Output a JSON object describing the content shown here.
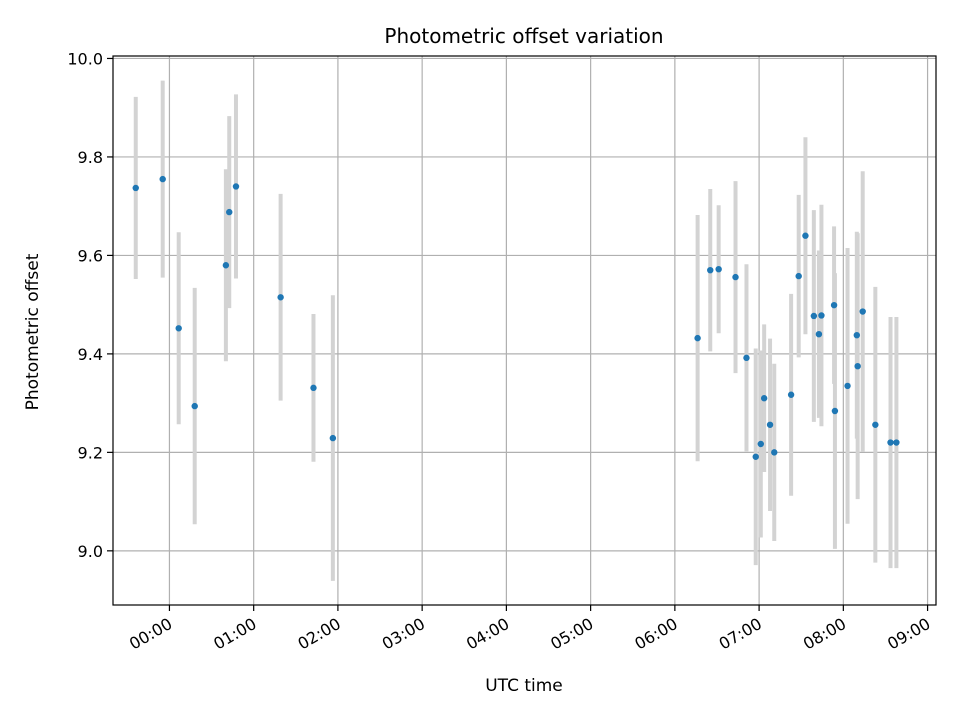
{
  "chart_data": {
    "type": "scatter",
    "title": "Photometric offset variation",
    "xlabel": "UTC time",
    "ylabel": "Photometric offset",
    "x_unit": "hours UTC",
    "xlim": [
      -0.67,
      9.1
    ],
    "ylim": [
      8.89,
      10.005
    ],
    "grid": true,
    "x_ticks": [
      {
        "value": 0,
        "label": "00:00"
      },
      {
        "value": 1,
        "label": "01:00"
      },
      {
        "value": 2,
        "label": "02:00"
      },
      {
        "value": 3,
        "label": "03:00"
      },
      {
        "value": 4,
        "label": "04:00"
      },
      {
        "value": 5,
        "label": "05:00"
      },
      {
        "value": 6,
        "label": "06:00"
      },
      {
        "value": 7,
        "label": "07:00"
      },
      {
        "value": 8,
        "label": "08:00"
      },
      {
        "value": 9,
        "label": "09:00"
      }
    ],
    "y_ticks": [
      {
        "value": 9.0,
        "label": "9.0"
      },
      {
        "value": 9.2,
        "label": "9.2"
      },
      {
        "value": 9.4,
        "label": "9.4"
      },
      {
        "value": 9.6,
        "label": "9.6"
      },
      {
        "value": 9.8,
        "label": "9.8"
      },
      {
        "value": 10.0,
        "label": "10.0"
      }
    ],
    "colors": {
      "marker": "#1f77b4",
      "errorbar": "#d3d3d3",
      "grid": "#b0b0b0"
    },
    "points": [
      {
        "x": -0.4,
        "y": 9.737,
        "err": 0.185
      },
      {
        "x": -0.08,
        "y": 9.755,
        "err": 0.2
      },
      {
        "x": 0.11,
        "y": 9.452,
        "err": 0.195
      },
      {
        "x": 0.3,
        "y": 9.294,
        "err": 0.24
      },
      {
        "x": 0.67,
        "y": 9.58,
        "err": 0.195
      },
      {
        "x": 0.71,
        "y": 9.688,
        "err": 0.195
      },
      {
        "x": 0.79,
        "y": 9.74,
        "err": 0.187
      },
      {
        "x": 1.32,
        "y": 9.515,
        "err": 0.21
      },
      {
        "x": 1.71,
        "y": 9.331,
        "err": 0.15
      },
      {
        "x": 1.94,
        "y": 9.229,
        "err": 0.29
      },
      {
        "x": 6.27,
        "y": 9.432,
        "err": 0.25
      },
      {
        "x": 6.42,
        "y": 9.57,
        "err": 0.165
      },
      {
        "x": 6.52,
        "y": 9.572,
        "err": 0.13
      },
      {
        "x": 6.72,
        "y": 9.556,
        "err": 0.195
      },
      {
        "x": 6.85,
        "y": 9.392,
        "err": 0.19
      },
      {
        "x": 6.96,
        "y": 9.191,
        "err": 0.22
      },
      {
        "x": 7.02,
        "y": 9.217,
        "err": 0.19
      },
      {
        "x": 7.06,
        "y": 9.31,
        "err": 0.15
      },
      {
        "x": 7.13,
        "y": 9.256,
        "err": 0.175
      },
      {
        "x": 7.18,
        "y": 9.2,
        "err": 0.18
      },
      {
        "x": 7.38,
        "y": 9.317,
        "err": 0.205
      },
      {
        "x": 7.47,
        "y": 9.558,
        "err": 0.165
      },
      {
        "x": 7.55,
        "y": 9.64,
        "err": 0.2
      },
      {
        "x": 7.65,
        "y": 9.477,
        "err": 0.215
      },
      {
        "x": 7.71,
        "y": 9.44,
        "err": 0.17
      },
      {
        "x": 7.74,
        "y": 9.478,
        "err": 0.225
      },
      {
        "x": 7.89,
        "y": 9.499,
        "err": 0.16
      },
      {
        "x": 7.9,
        "y": 9.284,
        "err": 0.28
      },
      {
        "x": 8.05,
        "y": 9.335,
        "err": 0.28
      },
      {
        "x": 8.16,
        "y": 9.438,
        "err": 0.21
      },
      {
        "x": 8.17,
        "y": 9.375,
        "err": 0.27
      },
      {
        "x": 8.23,
        "y": 9.486,
        "err": 0.285
      },
      {
        "x": 8.38,
        "y": 9.256,
        "err": 0.28
      },
      {
        "x": 8.56,
        "y": 9.22,
        "err": 0.255
      },
      {
        "x": 8.63,
        "y": 9.22,
        "err": 0.255
      }
    ]
  }
}
